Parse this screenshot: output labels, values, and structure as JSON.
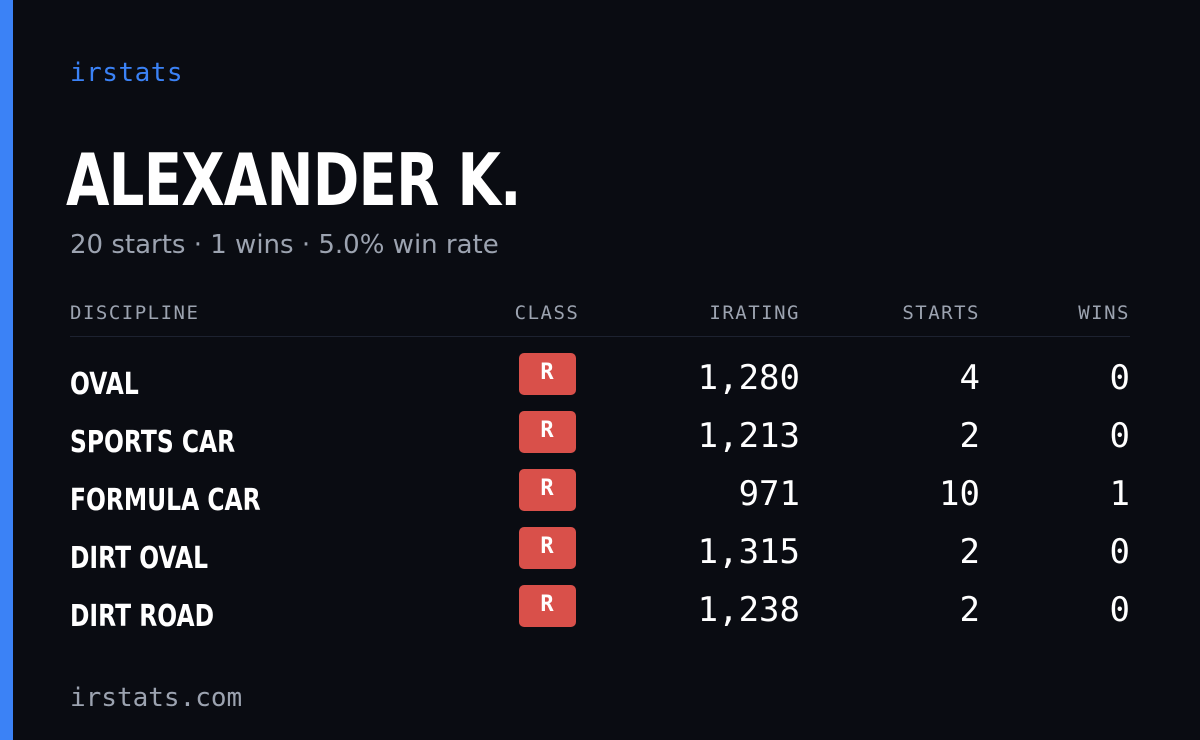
{
  "brand": "irstats",
  "player": {
    "name": "ALEXANDER K.",
    "summary": "20 starts · 1 wins · 5.0% win rate"
  },
  "table": {
    "headers": {
      "discipline": "DISCIPLINE",
      "class": "CLASS",
      "irating": "IRATING",
      "starts": "STARTS",
      "wins": "WINS"
    },
    "rows": [
      {
        "discipline": "OVAL",
        "class": "R",
        "irating": "1,280",
        "starts": "4",
        "wins": "0"
      },
      {
        "discipline": "SPORTS CAR",
        "class": "R",
        "irating": "1,213",
        "starts": "2",
        "wins": "0"
      },
      {
        "discipline": "FORMULA CAR",
        "class": "R",
        "irating": "971",
        "starts": "10",
        "wins": "1"
      },
      {
        "discipline": "DIRT OVAL",
        "class": "R",
        "irating": "1,315",
        "starts": "2",
        "wins": "0"
      },
      {
        "discipline": "DIRT ROAD",
        "class": "R",
        "irating": "1,238",
        "starts": "2",
        "wins": "0"
      }
    ]
  },
  "footer": "irstats.com",
  "colors": {
    "accent": "#3b82f6",
    "background": "#0a0c12",
    "class_r_badge": "#d9504a",
    "muted_text": "#9ca3b0"
  }
}
